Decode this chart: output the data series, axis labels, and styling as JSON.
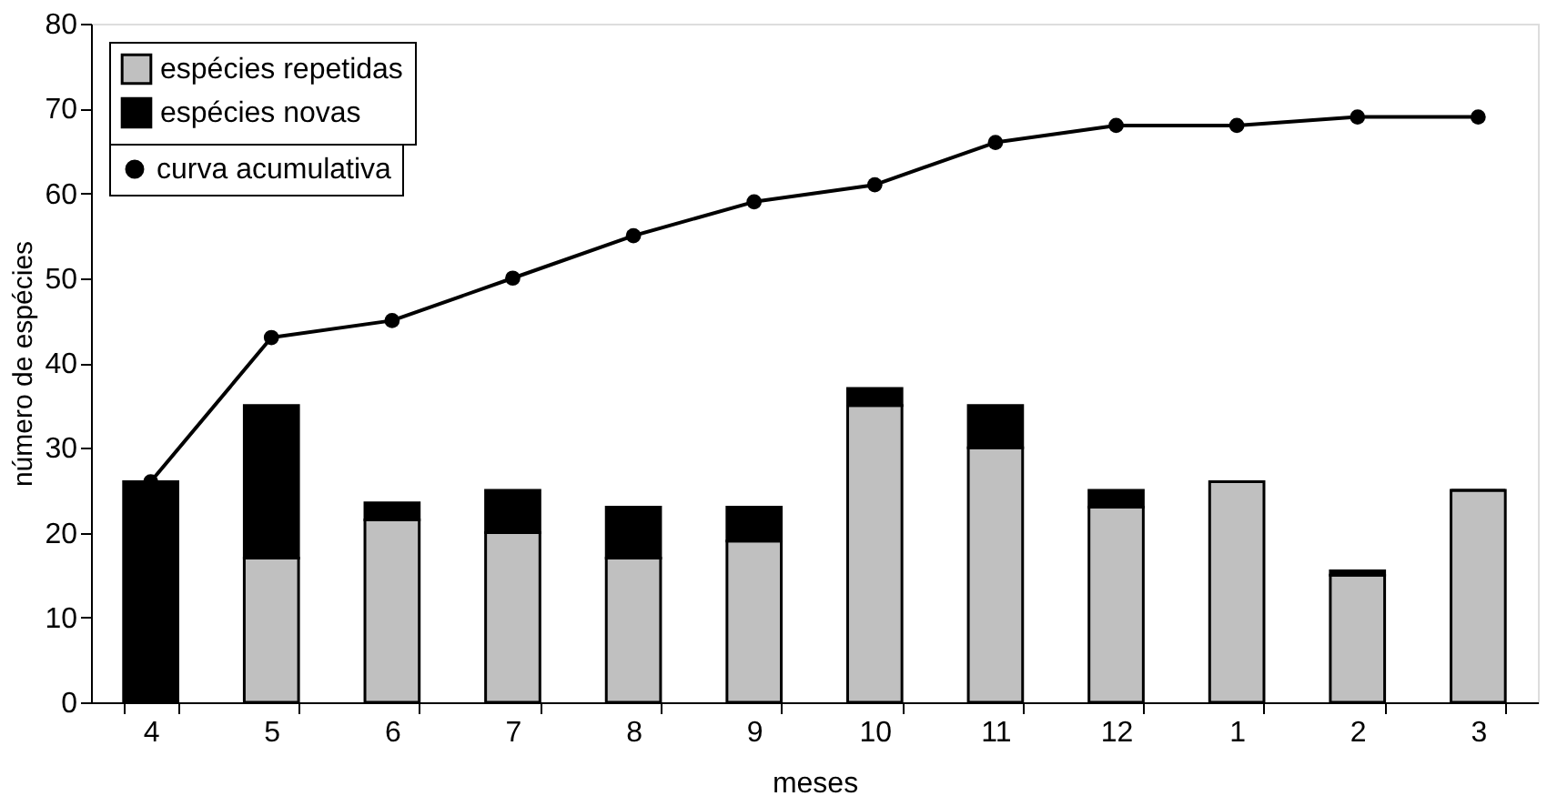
{
  "chart_data": {
    "type": "bar",
    "stacked": true,
    "xlabel": "meses",
    "ylabel": "número de espécies",
    "categories": [
      "4",
      "5",
      "6",
      "7",
      "8",
      "9",
      "10",
      "11",
      "12",
      "1",
      "2",
      "3"
    ],
    "series": [
      {
        "name": "espécies repetidas",
        "color": "#c0c0c0",
        "values": [
          0,
          17,
          21.5,
          20,
          17,
          19,
          35,
          30,
          23,
          26,
          15,
          25
        ]
      },
      {
        "name": "espécies novas",
        "color": "#000000",
        "values": [
          26,
          18,
          2,
          5,
          6,
          4,
          2,
          5,
          2,
          0,
          0.5,
          0
        ]
      },
      {
        "name": "curva acumulativa",
        "color": "#000000",
        "type": "line",
        "values": [
          26,
          43,
          45,
          50,
          55,
          59,
          61,
          66,
          68,
          68,
          69,
          69
        ]
      }
    ],
    "ylim": [
      0,
      80
    ],
    "yticks": [
      0,
      10,
      20,
      30,
      40,
      50,
      60,
      70,
      80
    ],
    "grid": false,
    "legend": "top left",
    "marker": "circle"
  }
}
